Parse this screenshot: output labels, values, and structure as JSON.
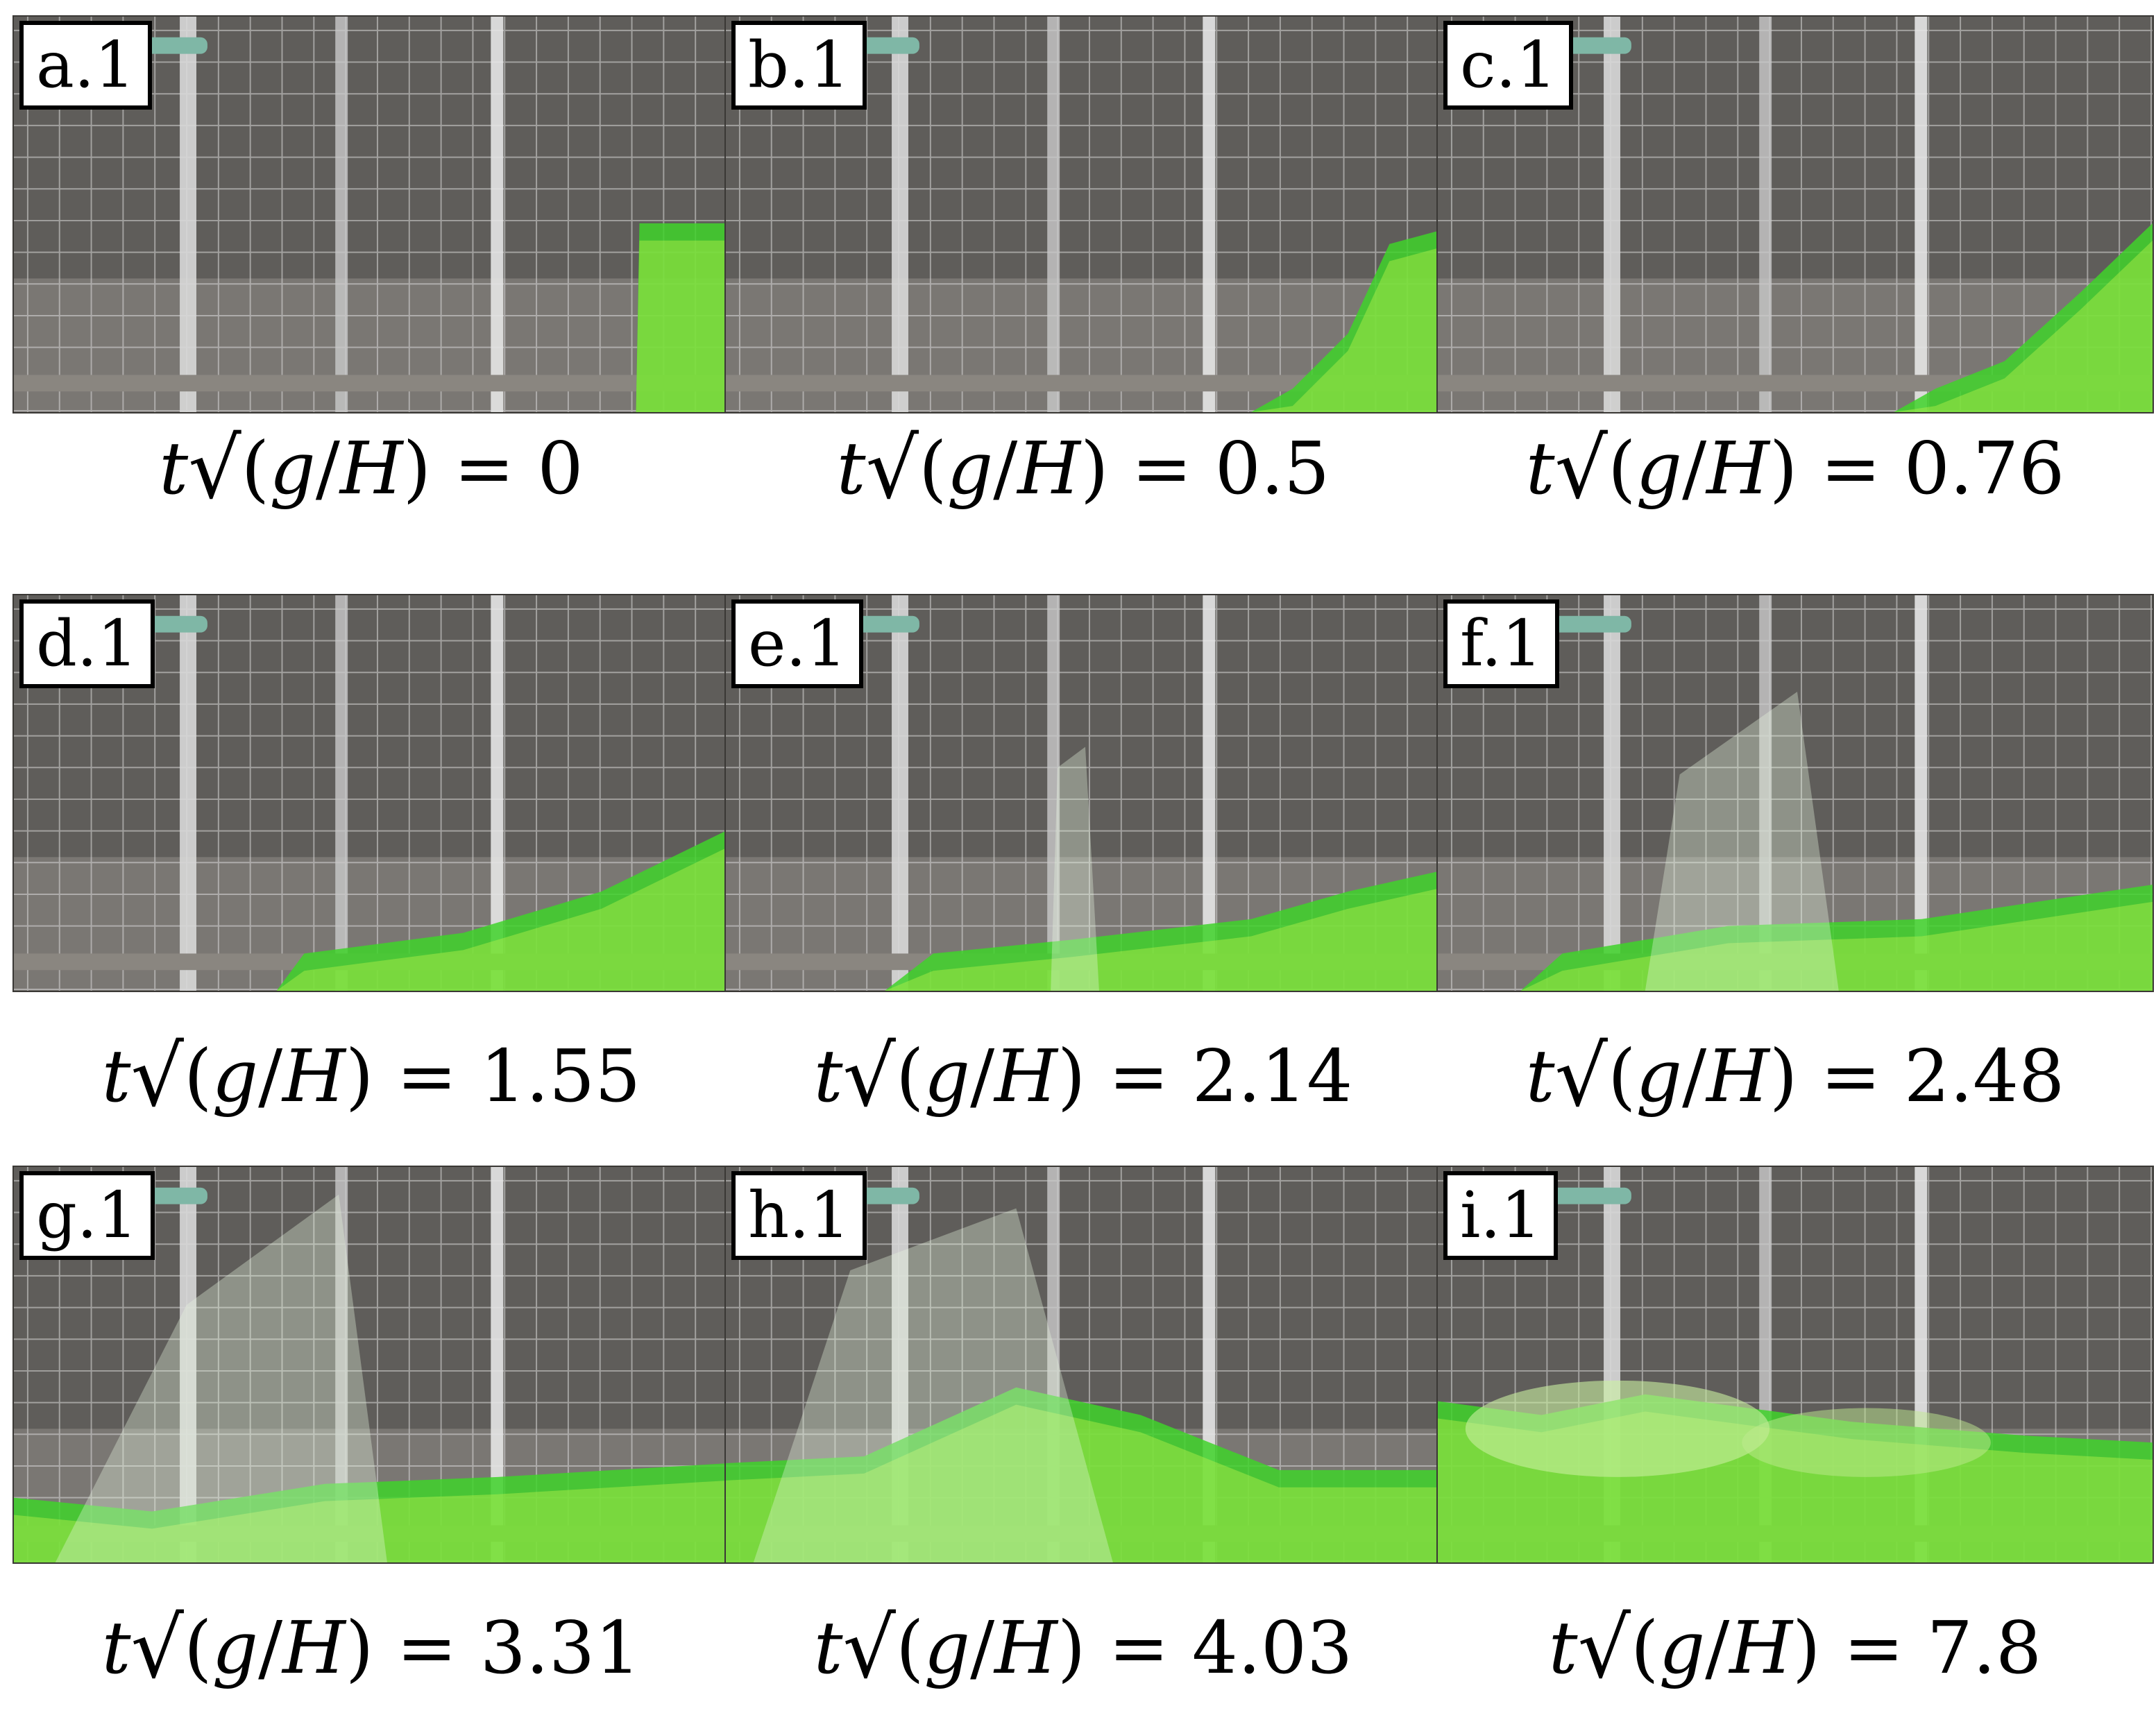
{
  "panels": [
    {
      "label": "a.1",
      "value": "0",
      "stage": 0
    },
    {
      "label": "b.1",
      "value": "0.5",
      "stage": 1
    },
    {
      "label": "c.1",
      "value": "0.76",
      "stage": 2
    },
    {
      "label": "d.1",
      "value": "1.55",
      "stage": 3
    },
    {
      "label": "e.1",
      "value": "2.14",
      "stage": 4
    },
    {
      "label": "f.1",
      "value": "2.48",
      "stage": 5
    },
    {
      "label": "g.1",
      "value": "3.31",
      "stage": 6
    },
    {
      "label": "h.1",
      "value": "4.03",
      "stage": 7
    },
    {
      "label": "i.1",
      "value": "7.8",
      "stage": 8
    }
  ],
  "caption_expr": {
    "t": "t",
    "open": "(",
    "g": "g",
    "slash": "/",
    "H": "H",
    "close": ")",
    "eq": "="
  },
  "colors": {
    "water": "#3fd22a",
    "water_light": "#b6f04a",
    "tank_bg": "#6d6a66",
    "grid": "#d9d9d9"
  }
}
